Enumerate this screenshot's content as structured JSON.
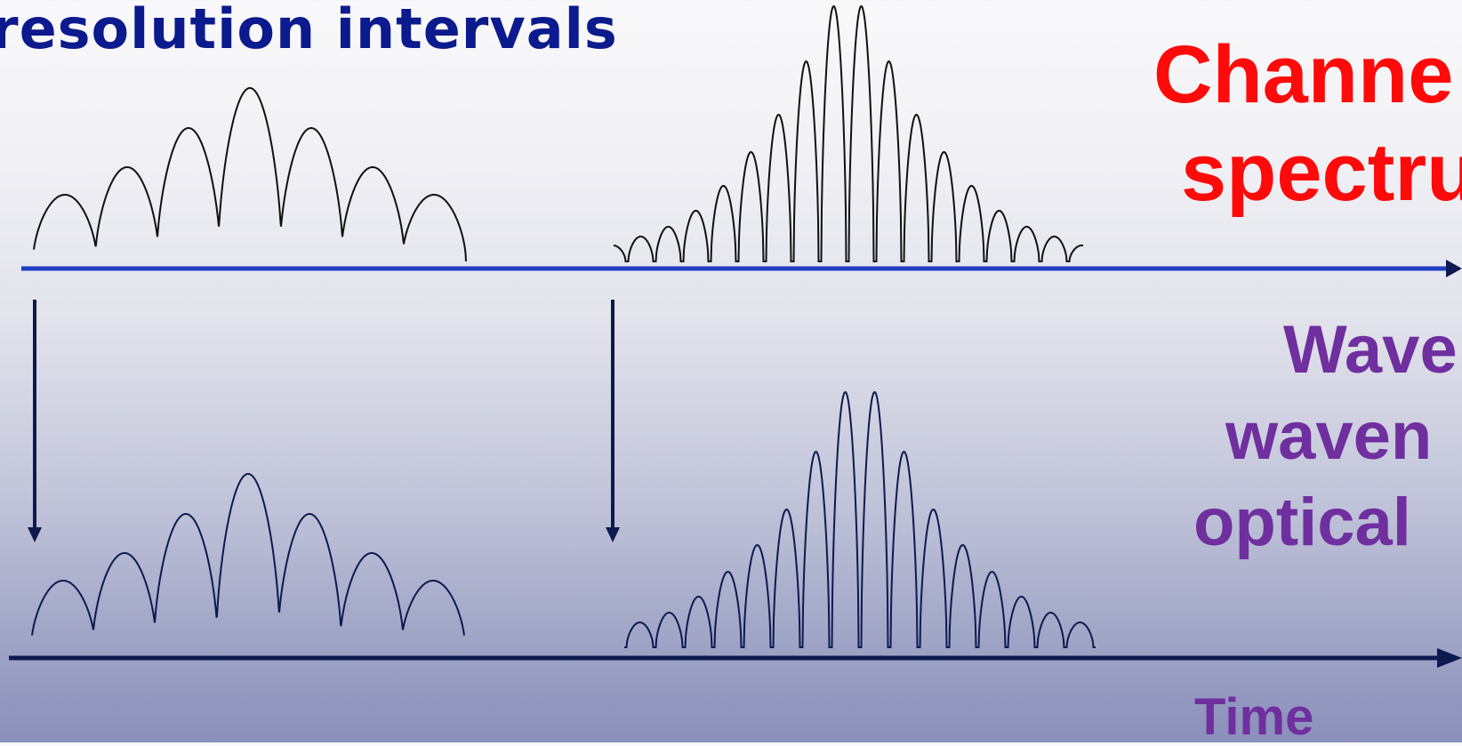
{
  "heading": "resolution intervals",
  "spectrum_label": {
    "line1": "Channe",
    "line2": "spectru"
  },
  "wavenumber_label": {
    "line1": "Wave",
    "line2": "waven",
    "line3": "optical"
  },
  "time_label": "Time",
  "colors": {
    "heading": "#0b1a8c",
    "spectrum_label": "#ff0a0a",
    "wavenumber_label": "#6f2f9f",
    "top_axis": "#1f3fc4",
    "bottom_axis": "#0c1a4f",
    "arrows": "#0c1a4f",
    "top_curves": "#111111",
    "bottom_curves": "#0c1a4f"
  },
  "icons": [
    "down-arrow-icon",
    "down-arrow-icon",
    "axis-arrowhead-icon",
    "axis-arrowhead-icon"
  ]
}
